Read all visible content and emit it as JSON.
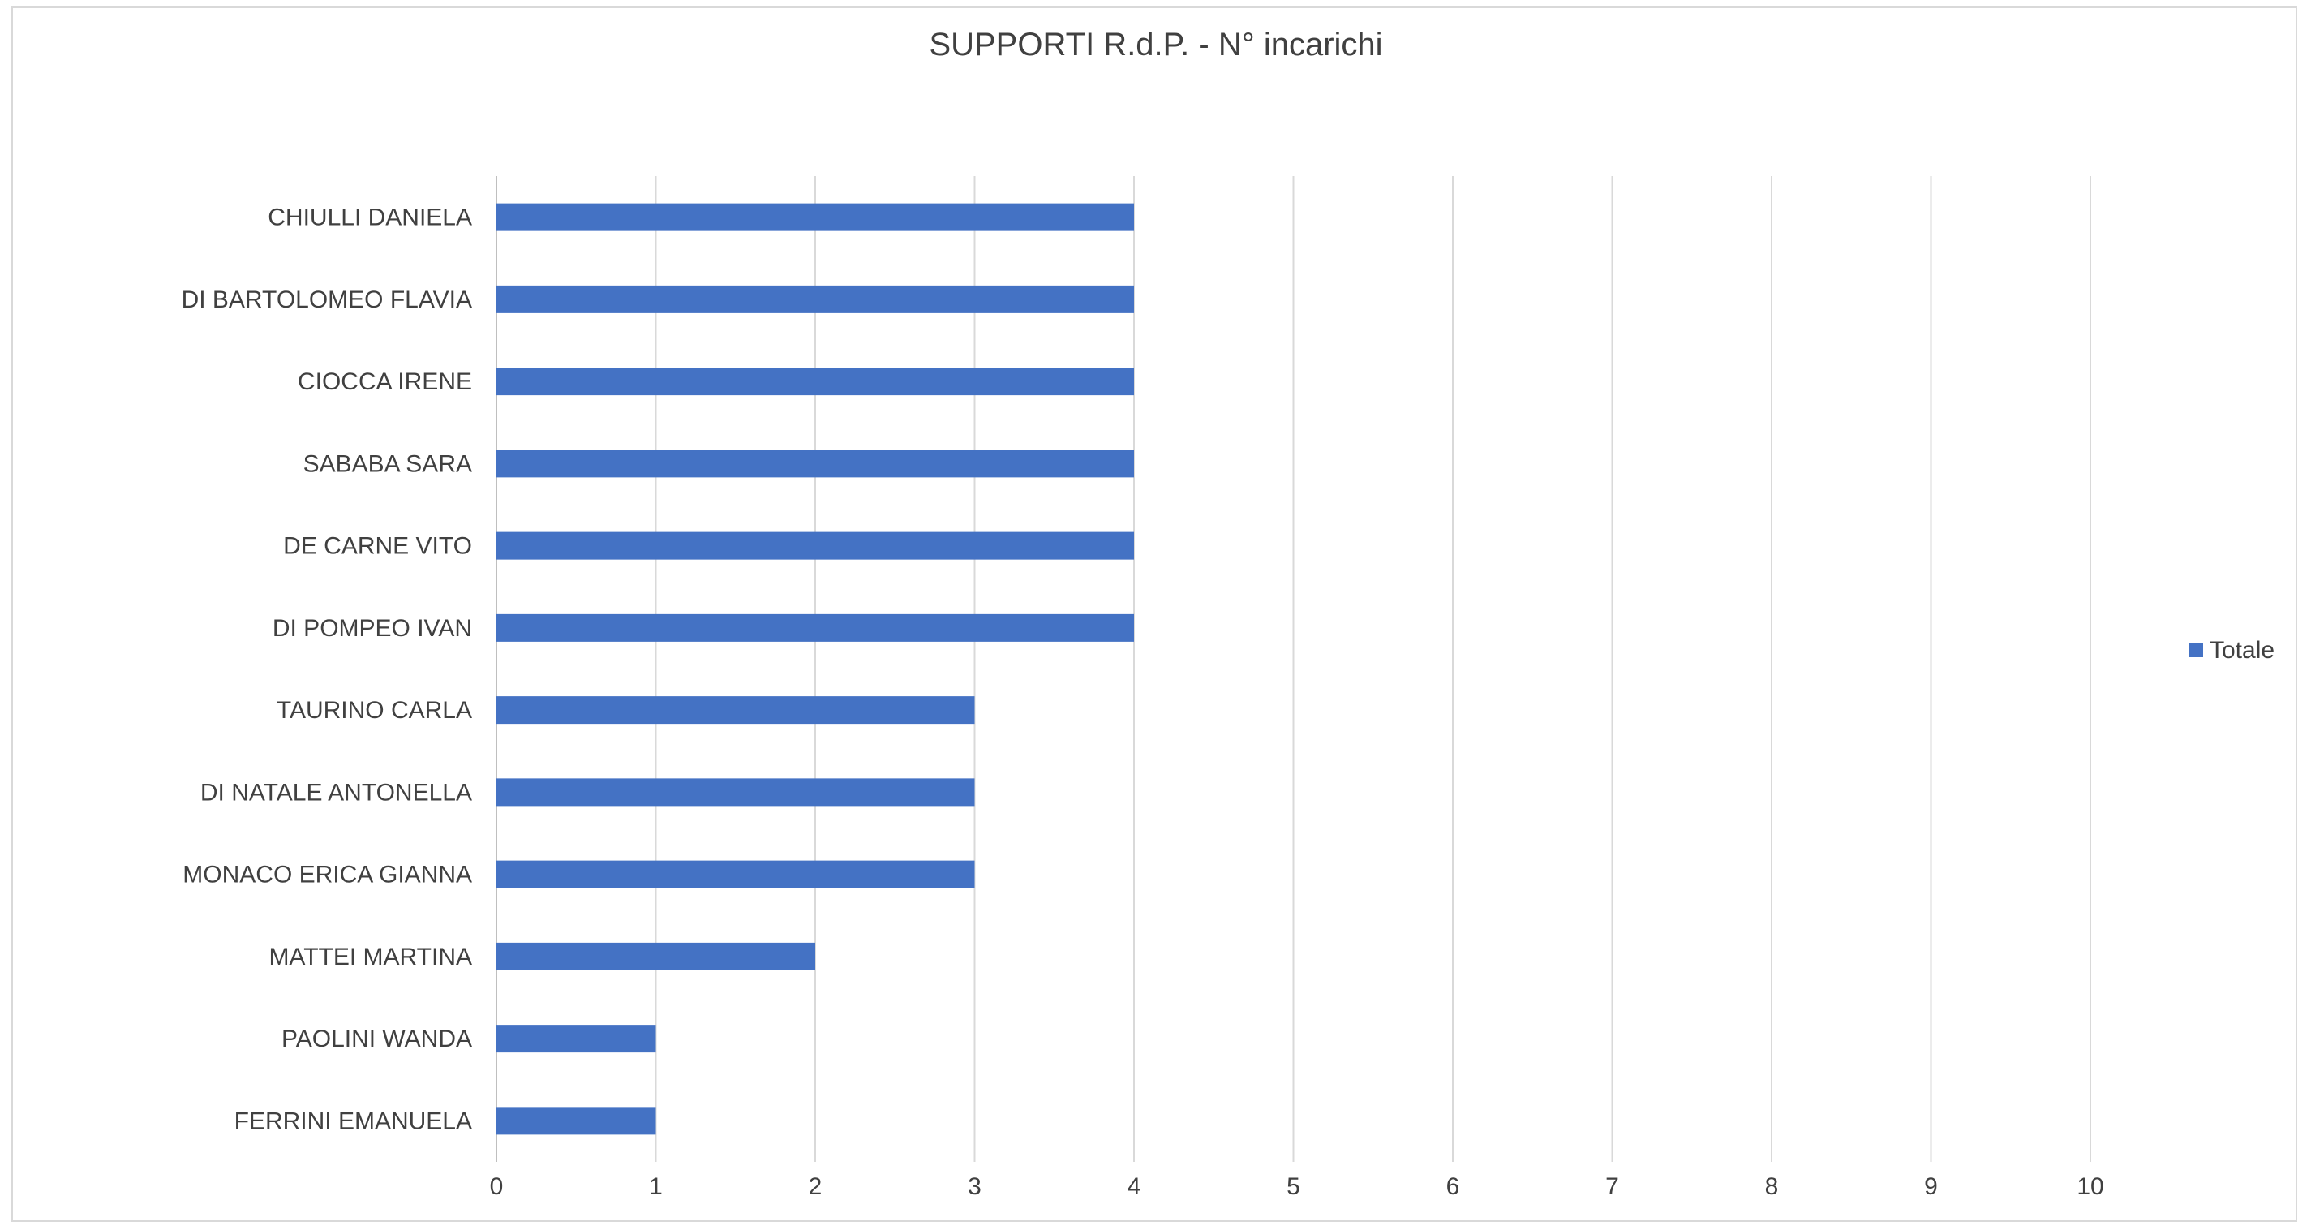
{
  "chart_data": {
    "type": "bar",
    "orientation": "horizontal",
    "title": "SUPPORTI R.d.P. - N° incarichi",
    "xlabel": "",
    "ylabel": "",
    "categories": [
      "CHIULLI DANIELA",
      "DI BARTOLOMEO FLAVIA",
      "CIOCCA IRENE",
      "SABABA SARA",
      "DE CARNE VITO",
      "DI POMPEO IVAN",
      "TAURINO  CARLA",
      "DI NATALE ANTONELLA",
      "MONACO ERICA GIANNA",
      "MATTEI MARTINA",
      "PAOLINI WANDA",
      "FERRINI EMANUELA"
    ],
    "series": [
      {
        "name": "Totale",
        "color": "#4472c4",
        "values": [
          4,
          4,
          4,
          4,
          4,
          4,
          3,
          3,
          3,
          2,
          1,
          1
        ]
      }
    ],
    "xlim": [
      0,
      11
    ],
    "xticks": [
      "0",
      "1",
      "2",
      "3",
      "4",
      "5",
      "6",
      "7",
      "8",
      "9",
      "10"
    ],
    "grid": true,
    "legend_position": "right"
  }
}
